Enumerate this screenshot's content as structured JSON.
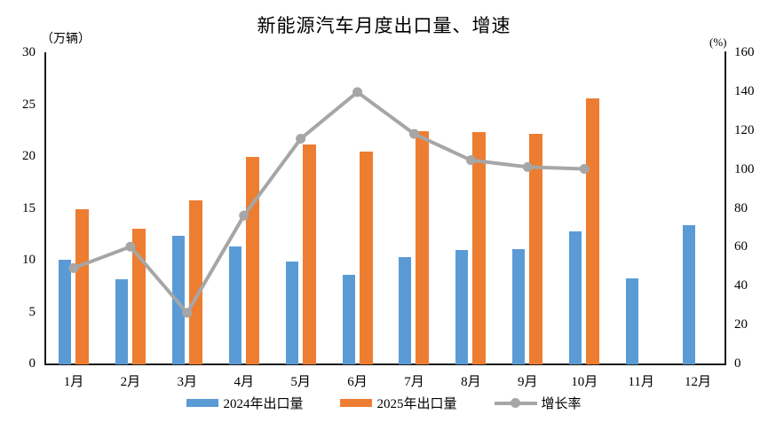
{
  "chart_data": {
    "type": "combo",
    "title": "新能源汽车月度出口量、增速",
    "categories": [
      "1月",
      "2月",
      "3月",
      "4月",
      "5月",
      "6月",
      "7月",
      "8月",
      "9月",
      "10月",
      "11月",
      "12月"
    ],
    "series": [
      {
        "name": "2024年出口量",
        "type": "bar",
        "axis": "left",
        "color": "#5B9BD5",
        "values": [
          10.1,
          8.2,
          12.4,
          11.4,
          9.9,
          8.6,
          10.3,
          11.0,
          11.1,
          12.8,
          8.3,
          13.4
        ]
      },
      {
        "name": "2025年出口量",
        "type": "bar",
        "axis": "left",
        "color": "#ED7D31",
        "values": [
          15.0,
          13.1,
          15.8,
          20.0,
          21.2,
          20.5,
          22.5,
          22.4,
          22.2,
          25.6,
          null,
          null
        ]
      },
      {
        "name": "增长率",
        "type": "line",
        "axis": "right",
        "color": "#A6A6A6",
        "values": [
          49.5,
          60.5,
          26.5,
          76.5,
          116.0,
          140.0,
          118.5,
          105.0,
          101.5,
          100.5,
          null,
          null
        ]
      }
    ],
    "left_axis": {
      "unit": "（万辆）",
      "min": 0,
      "max": 30,
      "step": 5,
      "ticks": [
        0,
        5,
        10,
        15,
        20,
        25,
        30
      ]
    },
    "right_axis": {
      "unit": "(%)",
      "min": 0,
      "max": 160,
      "step": 20,
      "ticks": [
        0,
        20,
        40,
        60,
        80,
        100,
        120,
        140,
        160
      ]
    },
    "legend_position": "bottom",
    "grid": false,
    "colors": {
      "bar_2024": "#5B9BD5",
      "bar_2025": "#ED7D31",
      "growth_line": "#A6A6A6",
      "axis": "#1a1a1a"
    }
  }
}
